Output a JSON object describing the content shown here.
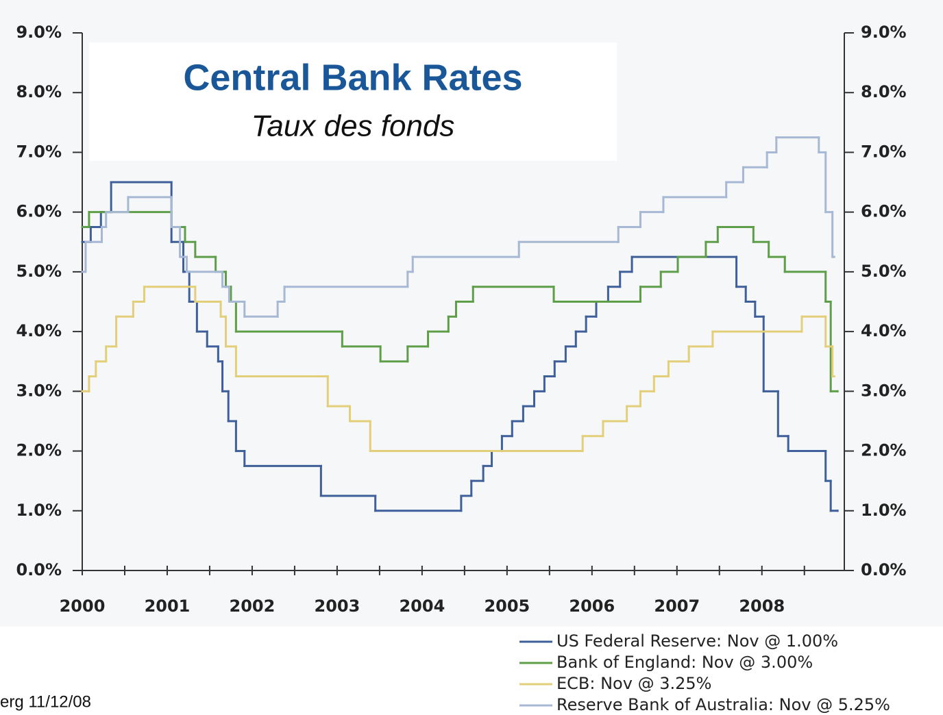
{
  "chart_data": {
    "type": "line",
    "step": true,
    "title": "Central Bank Rates",
    "subtitle": "Taux des fonds",
    "source": "erg 11/12/08",
    "xlim": [
      2000,
      2008.97
    ],
    "xticks": [
      2000,
      2001,
      2002,
      2003,
      2004,
      2005,
      2006,
      2007,
      2008
    ],
    "xminor": [
      2000.5,
      2001.5,
      2002.5,
      2003.5,
      2004.5,
      2005.5,
      2006.5,
      2007.5,
      2008.5
    ],
    "ylim": [
      0,
      9
    ],
    "yticks": [
      {
        "value": 0,
        "label": "0.0%"
      },
      {
        "value": 1,
        "label": "1.0%"
      },
      {
        "value": 2,
        "label": "2.0%"
      },
      {
        "value": 3,
        "label": "3.0%"
      },
      {
        "value": 4,
        "label": "4.0%"
      },
      {
        "value": 5,
        "label": "5.0%"
      },
      {
        "value": 6,
        "label": "6.0%"
      },
      {
        "value": 7,
        "label": "7.0%"
      },
      {
        "value": 8,
        "label": "8.0%"
      },
      {
        "value": 9,
        "label": "9.0%"
      }
    ],
    "y2lim": [
      0,
      9
    ],
    "y2ticks": [
      {
        "value": 0,
        "label": "0.0%"
      },
      {
        "value": 1,
        "label": "1.0%"
      },
      {
        "value": 2,
        "label": "2.0%"
      },
      {
        "value": 3,
        "label": "3.0%"
      },
      {
        "value": 4,
        "label": "4.0%"
      },
      {
        "value": 5,
        "label": "5.0%"
      },
      {
        "value": 6,
        "label": "6.0%"
      },
      {
        "value": 7,
        "label": "7.0%"
      },
      {
        "value": 8,
        "label": "8.0%"
      },
      {
        "value": 9,
        "label": "9.0%"
      }
    ],
    "series": [
      {
        "name": "US Federal Reserve: Nov @ 1.00%",
        "color": "#3e5f99",
        "x": [
          2000.0,
          2000.1,
          2000.22,
          2000.34,
          2001.05,
          2001.19,
          2001.26,
          2001.35,
          2001.47,
          2001.6,
          2001.65,
          2001.72,
          2001.81,
          2001.91,
          2002.81,
          2003.45,
          2004.46,
          2004.58,
          2004.72,
          2004.82,
          2004.94,
          2005.06,
          2005.19,
          2005.32,
          2005.44,
          2005.56,
          2005.69,
          2005.81,
          2005.93,
          2006.05,
          2006.19,
          2006.33,
          2006.47,
          2007.7,
          2007.81,
          2007.92,
          2008.02,
          2008.19,
          2008.31,
          2008.75,
          2008.81,
          2008.89
        ],
        "values": [
          5.5,
          5.75,
          6,
          6.5,
          5.5,
          5,
          4.5,
          4,
          3.75,
          3.5,
          3,
          2.5,
          2,
          1.75,
          1.25,
          1,
          1.25,
          1.5,
          1.75,
          2,
          2.25,
          2.5,
          2.75,
          3,
          3.25,
          3.5,
          3.75,
          4,
          4.25,
          4.5,
          4.75,
          5,
          5.25,
          4.75,
          4.5,
          4.25,
          3,
          2.25,
          2,
          1.5,
          1,
          1
        ]
      },
      {
        "name": "Bank of England: Nov @ 3.00%",
        "color": "#5e9e48",
        "x": [
          2000.0,
          2000.08,
          2001.05,
          2001.21,
          2001.33,
          2001.57,
          2001.69,
          2001.75,
          2001.81,
          2003.06,
          2003.51,
          2003.83,
          2004.07,
          2004.31,
          2004.4,
          2004.6,
          2005.55,
          2006.57,
          2006.81,
          2007.01,
          2007.34,
          2007.48,
          2007.9,
          2008.08,
          2008.27,
          2008.75,
          2008.81,
          2008.89
        ],
        "values": [
          5.75,
          6,
          5.75,
          5.5,
          5.25,
          5,
          4.75,
          4.5,
          4,
          3.75,
          3.5,
          3.75,
          4,
          4.25,
          4.5,
          4.75,
          4.5,
          4.75,
          5,
          5.25,
          5.5,
          5.75,
          5.5,
          5.25,
          5,
          4.5,
          3,
          3
        ]
      },
      {
        "name": "ECB: Nov @ 3.25%",
        "color": "#e3cf7a",
        "x": [
          2000.0,
          2000.08,
          2000.16,
          2000.28,
          2000.4,
          2000.6,
          2000.73,
          2001.33,
          2001.63,
          2001.69,
          2001.81,
          2002.89,
          2003.15,
          2003.39,
          2005.89,
          2006.13,
          2006.41,
          2006.57,
          2006.73,
          2006.9,
          2007.14,
          2007.42,
          2008.47,
          2008.75,
          2008.83,
          2008.85
        ],
        "values": [
          3,
          3.25,
          3.5,
          3.75,
          4.25,
          4.5,
          4.75,
          4.5,
          4.25,
          3.75,
          3.25,
          2.75,
          2.5,
          2,
          2.25,
          2.5,
          2.75,
          3,
          3.25,
          3.5,
          3.75,
          4,
          4.25,
          3.75,
          3.25,
          3.25
        ]
      },
      {
        "name": "Reserve Bank of Australia: Nov @ 5.25%",
        "color": "#a6b8d4",
        "x": [
          2000.0,
          2000.04,
          2000.23,
          2000.28,
          2000.54,
          2001.05,
          2001.15,
          2001.23,
          2001.65,
          2001.73,
          2001.91,
          2002.3,
          2002.38,
          2003.83,
          2003.89,
          2005.14,
          2006.31,
          2006.57,
          2006.84,
          2007.58,
          2007.78,
          2008.06,
          2008.17,
          2008.67,
          2008.75,
          2008.83,
          2008.85
        ],
        "values": [
          5,
          5.5,
          5.75,
          6,
          6.25,
          5.75,
          5.25,
          5,
          4.75,
          4.5,
          4.25,
          4.5,
          4.75,
          5,
          5.25,
          5.5,
          5.75,
          6,
          6.25,
          6.5,
          6.75,
          7,
          7.25,
          7,
          6,
          5.25,
          5.25
        ]
      }
    ]
  }
}
